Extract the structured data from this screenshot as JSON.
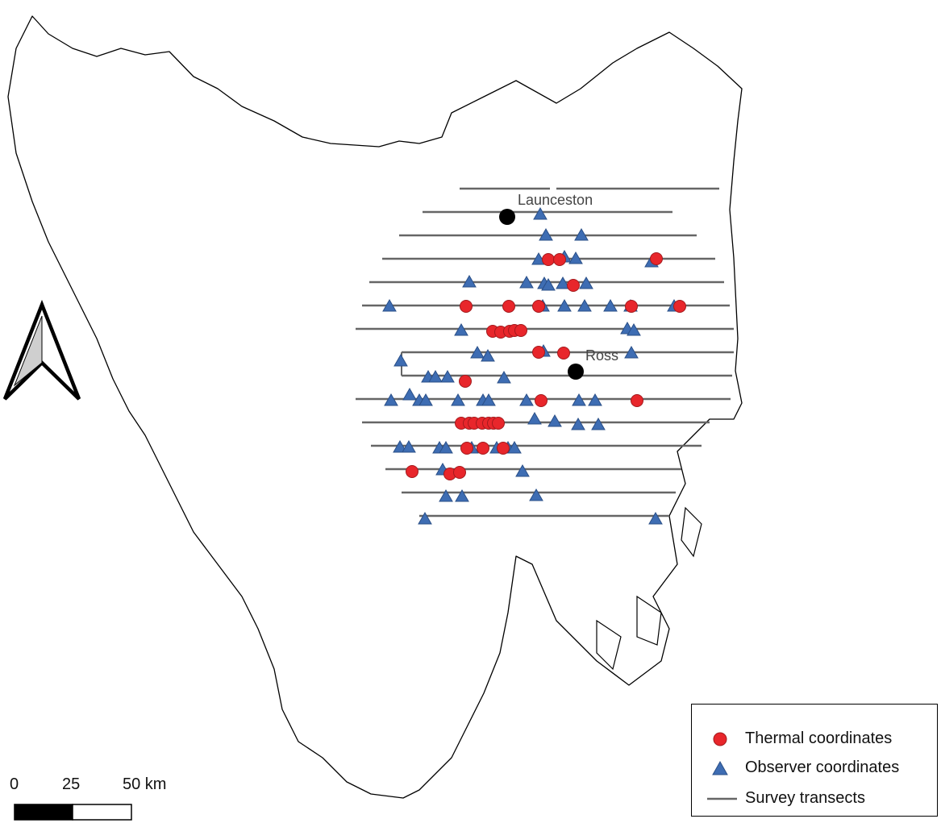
{
  "places": [
    {
      "name": "Launceston"
    },
    {
      "name": "Ross"
    }
  ],
  "legend": {
    "items": [
      {
        "label": "Thermal coordinates",
        "color": "#e8262b"
      },
      {
        "label": "Observer coordinates",
        "color": "#3e6db3"
      },
      {
        "label": "Survey transects",
        "color": "#666666"
      }
    ]
  },
  "scale_bar": {
    "labels": [
      "0",
      "25",
      "50 km"
    ]
  },
  "colors": {
    "thermal": "#e8262b",
    "observer": "#3e6db3",
    "transect": "#666666",
    "coast": "#000000",
    "town": "#000000"
  },
  "icons": {
    "north_arrow": "north-arrow-icon"
  }
}
